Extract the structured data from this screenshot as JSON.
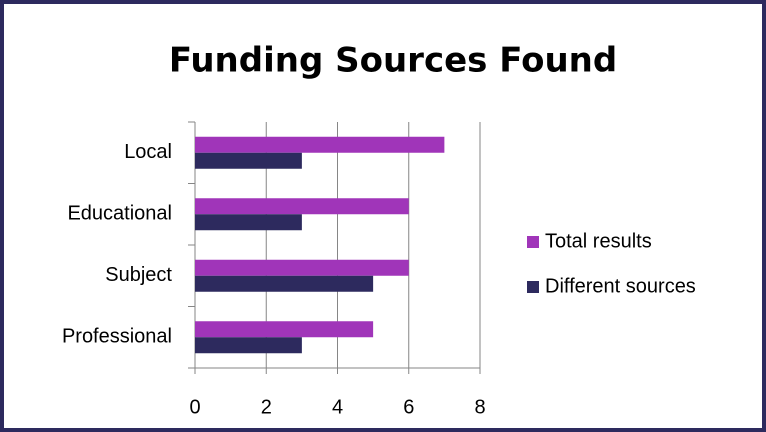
{
  "chart_data": {
    "type": "bar",
    "orientation": "horizontal",
    "title": "Funding Sources Found",
    "categories": [
      "Local",
      "Educational",
      "Subject",
      "Professional"
    ],
    "series": [
      {
        "name": "Total results",
        "color": "#a035b9",
        "values": [
          7,
          6,
          6,
          5
        ]
      },
      {
        "name": "Different sources",
        "color": "#2d2a5e",
        "values": [
          3,
          3,
          5,
          3
        ]
      }
    ],
    "xlim": [
      0,
      8
    ],
    "xticks": [
      0,
      2,
      4,
      6,
      8
    ],
    "grid": true,
    "legend": "right"
  }
}
